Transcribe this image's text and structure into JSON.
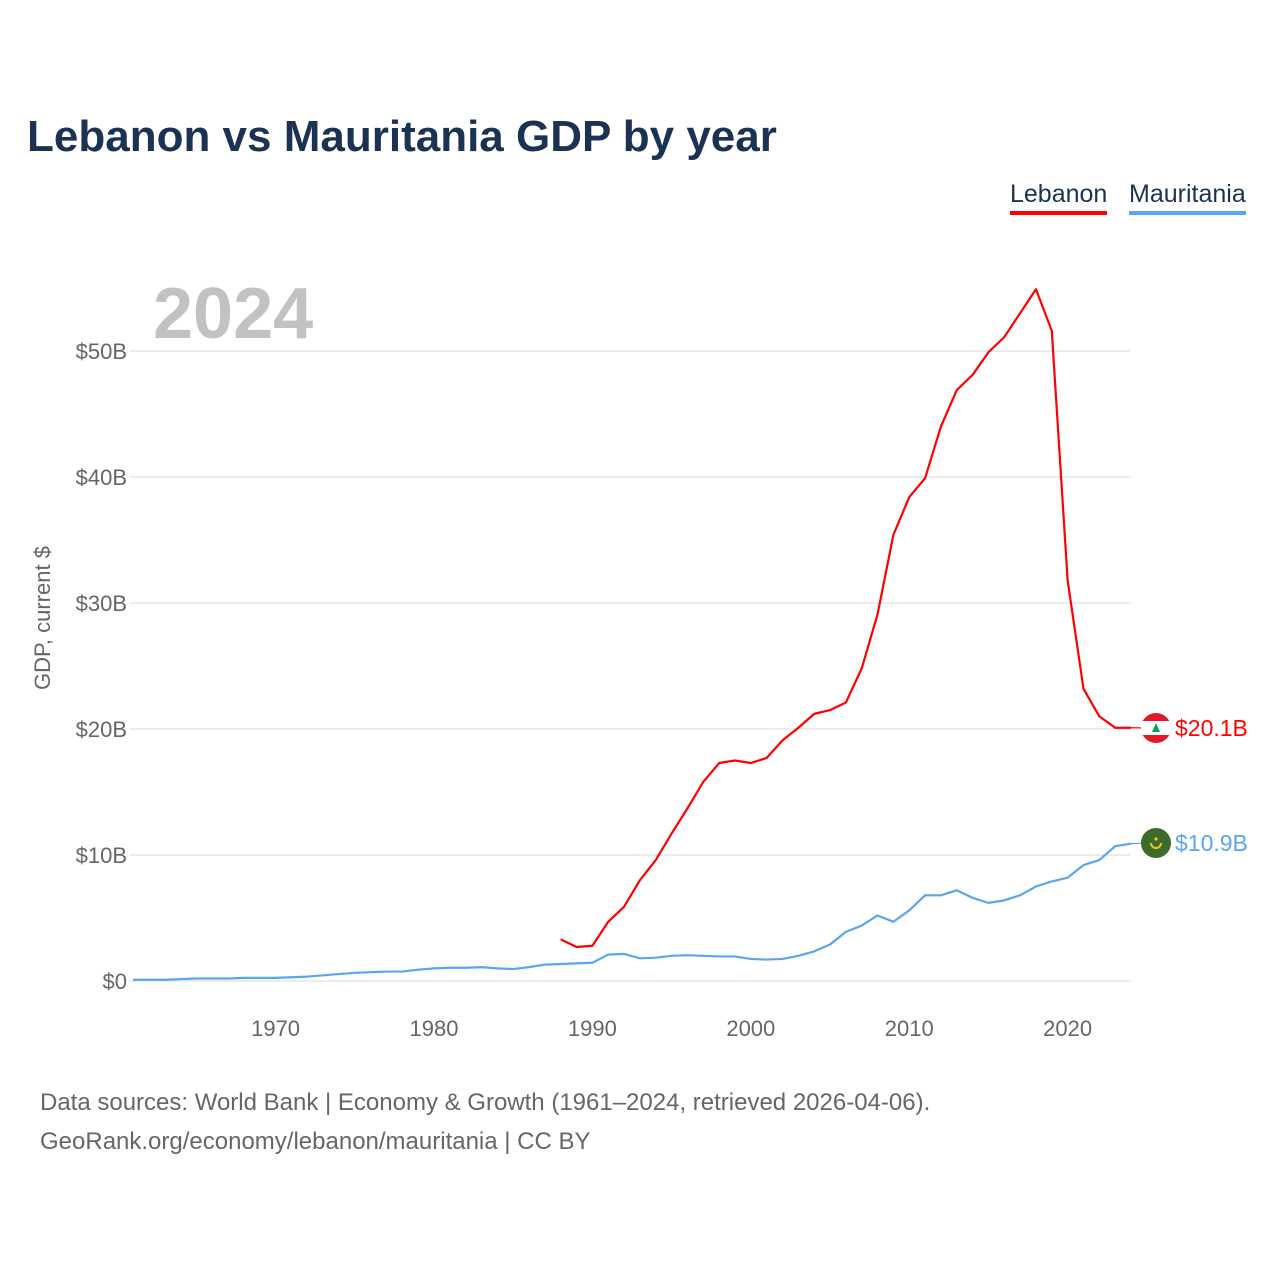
{
  "chart_data": {
    "type": "line",
    "title": "Lebanon vs Mauritania GDP by year",
    "ylabel": "GDP, current $",
    "xlabel": "",
    "year_label": "2024",
    "xlim": [
      1961,
      2024
    ],
    "ylim": [
      0,
      55
    ],
    "x_ticks": [
      1970,
      1980,
      1990,
      2000,
      2010,
      2020
    ],
    "y_ticks": [
      {
        "v": 0,
        "label": "$0"
      },
      {
        "v": 10,
        "label": "$10B"
      },
      {
        "v": 20,
        "label": "$20B"
      },
      {
        "v": 30,
        "label": "$30B"
      },
      {
        "v": 40,
        "label": "$40B"
      },
      {
        "v": 50,
        "label": "$50B"
      }
    ],
    "grid": true,
    "legend_position": "top-right",
    "series": [
      {
        "name": "Lebanon",
        "color": "#ff0000",
        "start_year": 1988,
        "end_label": "$20.1B",
        "flag": "lebanon-flag-icon",
        "values": [
          3.3,
          2.7,
          2.8,
          4.7,
          5.9,
          8.0,
          9.6,
          11.7,
          13.7,
          15.8,
          17.3,
          17.5,
          17.3,
          17.7,
          19.1,
          20.1,
          21.2,
          21.5,
          22.1,
          24.8,
          29.1,
          35.4,
          38.4,
          39.9,
          44.0,
          46.9,
          48.1,
          49.9,
          51.1,
          53.0,
          54.9,
          51.6,
          31.8,
          23.2,
          21.0,
          20.1,
          20.1
        ]
      },
      {
        "name": "Mauritania",
        "color": "#5aa6ee",
        "start_year": 1961,
        "end_label": "$10.9B",
        "flag": "mauritania-flag-icon",
        "values": [
          0.1,
          0.1,
          0.1,
          0.15,
          0.2,
          0.2,
          0.2,
          0.25,
          0.25,
          0.25,
          0.3,
          0.35,
          0.45,
          0.55,
          0.65,
          0.7,
          0.75,
          0.75,
          0.9,
          1.0,
          1.05,
          1.05,
          1.1,
          1.0,
          0.95,
          1.1,
          1.3,
          1.35,
          1.4,
          1.45,
          2.1,
          2.15,
          1.8,
          1.85,
          2.0,
          2.05,
          2.0,
          1.95,
          1.95,
          1.75,
          1.7,
          1.75,
          2.0,
          2.35,
          2.9,
          3.9,
          4.4,
          5.2,
          4.7,
          5.6,
          6.8,
          6.8,
          7.2,
          6.6,
          6.2,
          6.4,
          6.8,
          7.5,
          7.9,
          8.2,
          9.2,
          9.6,
          10.7,
          10.9
        ]
      }
    ]
  },
  "footer": {
    "line1": "Data sources: World Bank | Economy & Growth (1961–2024, retrieved 2026-04-06).",
    "line2": "GeoRank.org/economy/lebanon/mauritania | CC BY"
  }
}
